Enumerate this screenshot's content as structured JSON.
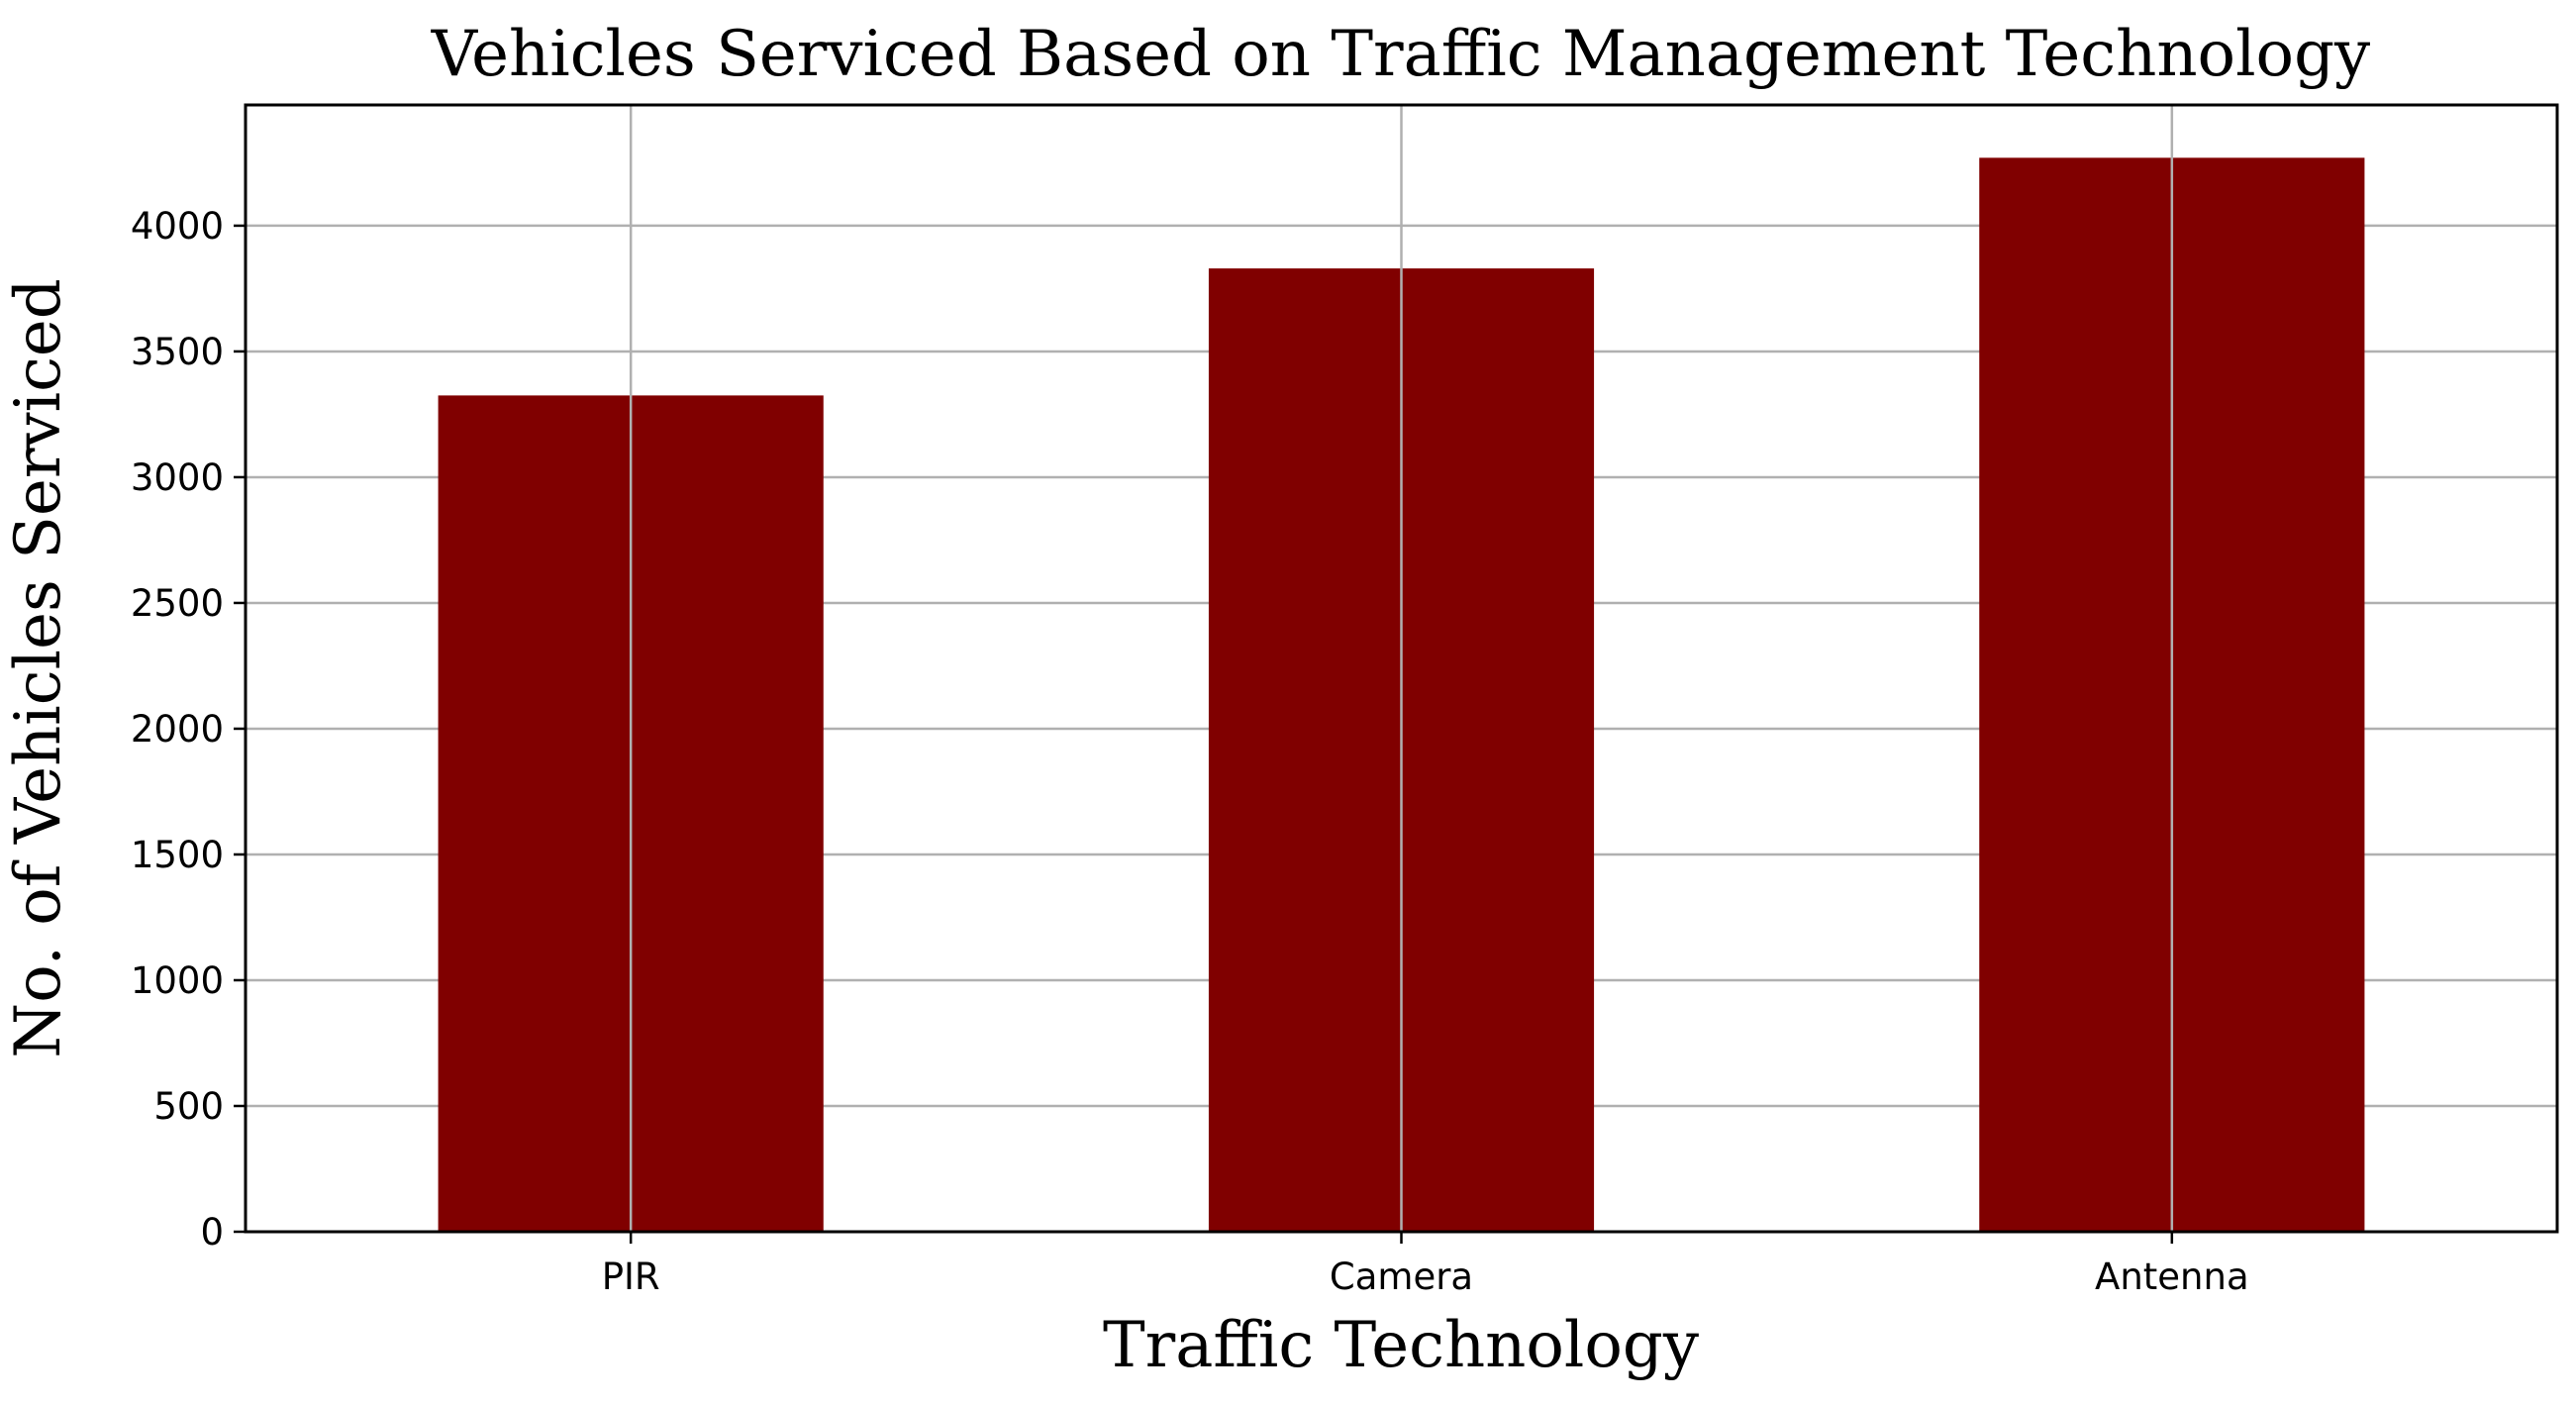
{
  "chart_data": {
    "type": "bar",
    "title": "Vehicles Serviced Based on Traffic Management Technology",
    "xlabel": "Traffic Technology",
    "ylabel": "No. of Vehicles Serviced",
    "categories": [
      "PIR",
      "Camera",
      "Antenna"
    ],
    "values": [
      3325,
      3830,
      4270
    ],
    "ylim": [
      0,
      4480
    ],
    "yticks": [
      0,
      500,
      1000,
      1500,
      2000,
      2500,
      3000,
      3500,
      4000
    ],
    "grid": true,
    "legend": "none",
    "bar_color": "#800000"
  }
}
